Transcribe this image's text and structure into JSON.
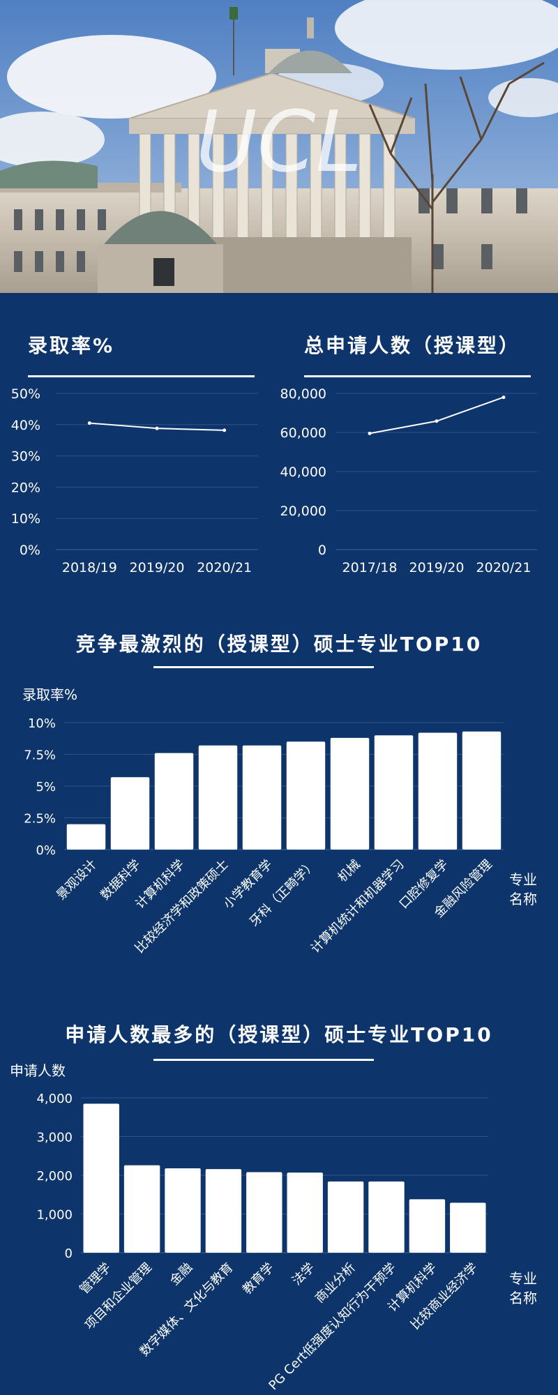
{
  "hero": {
    "logo_text": "UCL",
    "colors": {
      "sky": "#6d92c9",
      "stone": "#cbc3b6",
      "dome": "#9aa3a0"
    }
  },
  "sections": {
    "admit_rate_title": "录取率%",
    "applicants_title": "总申请人数（授课型）",
    "competitive_title": "竞争最激烈的（授课型）硕士专业TOP10",
    "popular_title": "申请人数最多的（授课型）硕士专业TOP10"
  },
  "colors": {
    "background": "#0e356b",
    "bar": "#ffffff",
    "grid": "#2e5585"
  },
  "chart_data": [
    {
      "id": "admit-rate",
      "type": "line",
      "title": "录取率%",
      "categories": [
        "2018/19",
        "2019/20",
        "2020/21"
      ],
      "values": [
        40.5,
        38.8,
        38.2
      ],
      "ylim": [
        0,
        50
      ],
      "yticks": [
        "0%",
        "10%",
        "20%",
        "30%",
        "40%",
        "50%"
      ],
      "grid": true
    },
    {
      "id": "applicants",
      "type": "line",
      "title": "总申请人数（授课型）",
      "categories": [
        "2017/18",
        "2019/20",
        "2020/21"
      ],
      "values": [
        59500,
        65800,
        78000
      ],
      "ylim": [
        0,
        80000
      ],
      "yticks": [
        "0",
        "20,000",
        "40,000",
        "60,000",
        "80,000"
      ],
      "grid": true
    },
    {
      "id": "competitive",
      "type": "bar",
      "title": "竞争最激烈的（授课型）硕士专业TOP10",
      "ylabel": "录取率%",
      "xlabel": "专业\n名称",
      "categories": [
        "景观设计",
        "数据科学",
        "计算机科学",
        "比较经济学和政策硕士",
        "小学教育学",
        "牙科（正畸学）",
        "机械",
        "计算机统计和机器学习",
        "口腔修复学",
        "金融风险管理"
      ],
      "values": [
        2.0,
        5.7,
        7.6,
        8.2,
        8.2,
        8.5,
        8.8,
        9.0,
        9.2,
        9.3
      ],
      "ylim": [
        0,
        10
      ],
      "yticks": [
        "0%",
        "2.5%",
        "5%",
        "7.5%",
        "10%"
      ],
      "grid": true
    },
    {
      "id": "popular",
      "type": "bar",
      "title": "申请人数最多的（授课型）硕士专业TOP10",
      "ylabel": "申请人数",
      "xlabel": "专业\n名称",
      "categories": [
        "管理学",
        "项目和企业管理",
        "金融",
        "数字媒体、文化与教育",
        "教育学",
        "法学",
        "商业分析",
        "PG Cert低强度认知行为干预学",
        "计算机科学",
        "比较商业经济学"
      ],
      "values": [
        3850,
        2260,
        2180,
        2160,
        2080,
        2070,
        1840,
        1840,
        1380,
        1290
      ],
      "ylim": [
        0,
        4000
      ],
      "yticks": [
        "0",
        "1,000",
        "2,000",
        "3,000",
        "4,000"
      ],
      "grid": true
    }
  ]
}
